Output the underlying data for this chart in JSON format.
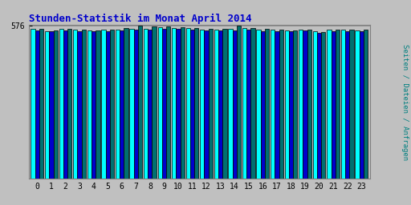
{
  "title": "Stunden-Statistik im Monat April 2014",
  "ylabel": "Seiten / Dateien / Anfragen",
  "xlabel_ticks": [
    "0",
    "1",
    "2",
    "3",
    "4",
    "5",
    "6",
    "7",
    "8",
    "9",
    "10",
    "11",
    "12",
    "13",
    "14",
    "15",
    "16",
    "17",
    "18",
    "19",
    "20",
    "21",
    "22",
    "23"
  ],
  "ytick_label": "576",
  "ytick_value": 576,
  "background_color": "#c0c0c0",
  "plot_bg_color": "#c0c0c0",
  "title_color": "#0000cc",
  "bar_colors": [
    "#00ffff",
    "#0000cc",
    "#007070"
  ],
  "bar_edge_color": "#000000",
  "ylabel_color": "#008080",
  "seiten": [
    563,
    556,
    563,
    561,
    558,
    560,
    562,
    565,
    565,
    569,
    567,
    566,
    562,
    561,
    563,
    566,
    561,
    560,
    559,
    561,
    555,
    561,
    560,
    559
  ],
  "dateien": [
    558,
    554,
    557,
    556,
    554,
    555,
    557,
    560,
    561,
    564,
    563,
    561,
    558,
    557,
    559,
    561,
    556,
    555,
    554,
    557,
    549,
    556,
    555,
    554
  ],
  "anfragen": [
    564,
    558,
    564,
    562,
    559,
    561,
    566,
    576,
    572,
    572,
    569,
    567,
    564,
    563,
    576,
    568,
    563,
    560,
    559,
    562,
    552,
    562,
    561,
    560
  ],
  "ylim_min": 0,
  "ylim_max": 580
}
